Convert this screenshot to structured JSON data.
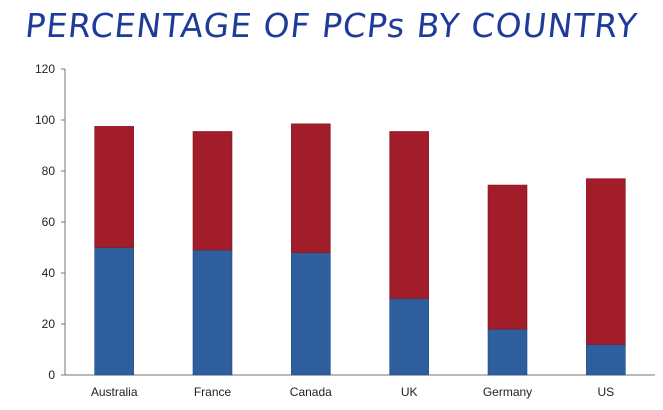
{
  "chart_data": {
    "type": "bar",
    "stacked": true,
    "title": "PERCENTAGE OF PCPs BY COUNTRY",
    "categories": [
      "Australia",
      "France",
      "Canada",
      "UK",
      "Germany",
      "US"
    ],
    "series": [
      {
        "color": "#2e5e9e",
        "values": [
          50,
          49,
          48,
          30,
          18,
          12
        ]
      },
      {
        "color": "#a11d2a",
        "values": [
          47.5,
          46.5,
          50.5,
          65.5,
          56.5,
          65
        ]
      }
    ],
    "ylim": [
      0,
      120
    ],
    "yticks": [
      0,
      20,
      40,
      60,
      80,
      100,
      120
    ],
    "grid": false,
    "legend": "none"
  }
}
